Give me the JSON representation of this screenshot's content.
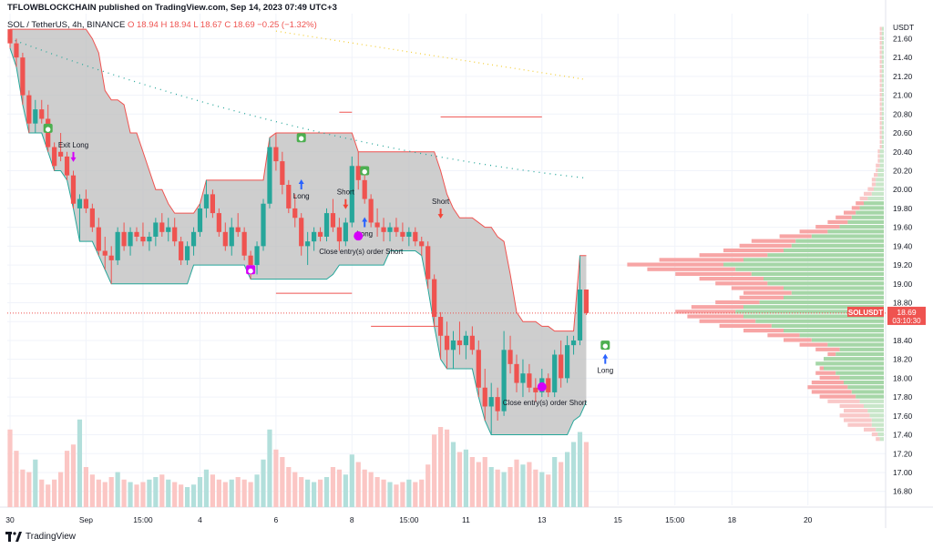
{
  "header": {
    "publish_line": "TFLOWBLOCKCHAIN published on TradingView.com, Sep 14, 2023 07:49 UTC+3",
    "pair": "SOL / TetherUS, 4h, BINANCE",
    "ohlc": "O 18.94 H 18.94 L 18.67 C 18.69 −0.25 (−1.32%)"
  },
  "footer": {
    "brand": "TradingView",
    "logo_icon": "tradingview-logo-icon"
  },
  "colors": {
    "up": "#26a69a",
    "down": "#ef5350",
    "upVol": "#b2dfdb",
    "downVol": "#fbc6c4",
    "band": "#bdbdbd",
    "vpUp": "#a5d6a7",
    "vpDown": "#f7a5a5",
    "vpUpVA": "#c8e6c9",
    "vpDownVA": "#f9c8c8"
  },
  "chart_data": {
    "type": "candlestick",
    "symbol": "SOLUSDT",
    "currency": "USDT",
    "last_price": "18.69",
    "countdown": "03:10:30",
    "yticks": [
      "21.60",
      "21.40",
      "21.20",
      "21.00",
      "20.80",
      "20.60",
      "20.40",
      "20.20",
      "20.00",
      "19.80",
      "19.60",
      "19.40",
      "19.20",
      "19.00",
      "18.80",
      "18.60",
      "18.40",
      "18.20",
      "18.00",
      "17.80",
      "17.60",
      "17.40",
      "17.20",
      "17.00",
      "16.80"
    ],
    "ylim": [
      16.72,
      21.72
    ],
    "xticks": [
      {
        "i": 0,
        "label": "30"
      },
      {
        "i": 12,
        "label": "Sep"
      },
      {
        "i": 21,
        "label": "15:00"
      },
      {
        "i": 30,
        "label": "4"
      },
      {
        "i": 42,
        "label": "6"
      },
      {
        "i": 54,
        "label": "8"
      },
      {
        "i": 63,
        "label": "15:00"
      },
      {
        "i": 72,
        "label": "11"
      },
      {
        "i": 84,
        "label": "13"
      },
      {
        "i": 96,
        "label": "15"
      },
      {
        "i": 105,
        "label": "15:00"
      },
      {
        "i": 114,
        "label": "18"
      },
      {
        "i": 126,
        "label": "20"
      }
    ],
    "candles": [
      [
        21.7,
        21.7,
        21.5,
        21.55
      ],
      [
        21.55,
        21.6,
        21.3,
        21.4
      ],
      [
        21.4,
        21.45,
        20.9,
        21.0
      ],
      [
        21.0,
        21.05,
        20.6,
        20.7
      ],
      [
        20.7,
        20.95,
        20.6,
        20.85
      ],
      [
        20.85,
        20.95,
        20.7,
        20.75
      ],
      [
        20.75,
        20.9,
        20.4,
        20.45
      ],
      [
        20.45,
        20.5,
        20.2,
        20.25
      ],
      [
        20.4,
        20.6,
        20.3,
        20.35
      ],
      [
        20.35,
        20.4,
        20.1,
        20.15
      ],
      [
        20.15,
        20.2,
        19.8,
        19.85
      ],
      [
        19.8,
        19.95,
        19.45,
        19.9
      ],
      [
        19.9,
        20.0,
        19.75,
        19.8
      ],
      [
        19.8,
        19.85,
        19.55,
        19.6
      ],
      [
        19.6,
        19.7,
        19.3,
        19.35
      ],
      [
        19.35,
        19.5,
        19.15,
        19.3
      ],
      [
        19.3,
        19.4,
        19.0,
        19.25
      ],
      [
        19.25,
        19.6,
        19.2,
        19.55
      ],
      [
        19.55,
        19.65,
        19.35,
        19.4
      ],
      [
        19.4,
        19.6,
        19.3,
        19.55
      ],
      [
        19.55,
        19.6,
        19.45,
        19.5
      ],
      [
        19.5,
        19.65,
        19.4,
        19.45
      ],
      [
        19.45,
        19.55,
        19.35,
        19.5
      ],
      [
        19.5,
        19.7,
        19.4,
        19.65
      ],
      [
        19.65,
        19.75,
        19.5,
        19.55
      ],
      [
        19.55,
        19.7,
        19.45,
        19.6
      ],
      [
        19.6,
        19.7,
        19.4,
        19.45
      ],
      [
        19.45,
        19.5,
        19.2,
        19.25
      ],
      [
        19.25,
        19.45,
        19.2,
        19.4
      ],
      [
        19.4,
        19.6,
        19.3,
        19.55
      ],
      [
        19.55,
        19.85,
        19.5,
        19.8
      ],
      [
        19.8,
        20.1,
        19.7,
        19.95
      ],
      [
        19.95,
        20.0,
        19.7,
        19.75
      ],
      [
        19.75,
        19.8,
        19.5,
        19.55
      ],
      [
        19.55,
        19.65,
        19.35,
        19.4
      ],
      [
        19.4,
        19.7,
        19.3,
        19.6
      ],
      [
        19.6,
        19.75,
        19.5,
        19.55
      ],
      [
        19.55,
        19.6,
        19.25,
        19.3
      ],
      [
        19.3,
        19.35,
        19.05,
        19.2
      ],
      [
        19.2,
        19.45,
        19.1,
        19.4
      ],
      [
        19.4,
        19.9,
        19.35,
        19.85
      ],
      [
        19.85,
        20.55,
        19.8,
        20.45
      ],
      [
        20.45,
        20.6,
        20.2,
        20.3
      ],
      [
        20.3,
        20.4,
        19.95,
        20.05
      ],
      [
        20.05,
        20.1,
        19.75,
        19.8
      ],
      [
        19.8,
        19.95,
        19.6,
        19.7
      ],
      [
        19.7,
        19.75,
        19.3,
        19.4
      ],
      [
        19.4,
        19.55,
        19.2,
        19.45
      ],
      [
        19.45,
        19.6,
        19.35,
        19.55
      ],
      [
        19.55,
        19.6,
        19.45,
        19.5
      ],
      [
        19.5,
        19.8,
        19.45,
        19.75
      ],
      [
        19.75,
        19.9,
        19.55,
        19.6
      ],
      [
        19.6,
        19.7,
        19.35,
        19.45
      ],
      [
        19.45,
        19.7,
        19.4,
        19.65
      ],
      [
        19.65,
        20.35,
        19.6,
        20.25
      ],
      [
        20.25,
        20.4,
        20.0,
        20.1
      ],
      [
        20.1,
        20.2,
        19.85,
        19.9
      ],
      [
        19.9,
        19.95,
        19.6,
        19.65
      ],
      [
        19.65,
        19.8,
        19.5,
        19.6
      ],
      [
        19.6,
        19.7,
        19.45,
        19.55
      ],
      [
        19.55,
        19.65,
        19.45,
        19.6
      ],
      [
        19.6,
        19.7,
        19.5,
        19.55
      ],
      [
        19.55,
        19.65,
        19.45,
        19.5
      ],
      [
        19.5,
        19.6,
        19.4,
        19.55
      ],
      [
        19.55,
        19.6,
        19.4,
        19.45
      ],
      [
        19.45,
        19.5,
        19.3,
        19.4
      ],
      [
        19.4,
        19.45,
        18.95,
        19.05
      ],
      [
        19.05,
        19.1,
        18.55,
        18.65
      ],
      [
        18.65,
        18.7,
        18.2,
        18.45
      ],
      [
        18.45,
        18.6,
        18.1,
        18.3
      ],
      [
        18.3,
        18.5,
        18.1,
        18.4
      ],
      [
        18.4,
        18.6,
        18.25,
        18.35
      ],
      [
        18.35,
        18.5,
        18.2,
        18.45
      ],
      [
        18.45,
        18.55,
        18.25,
        18.3
      ],
      [
        18.3,
        18.4,
        17.8,
        17.9
      ],
      [
        17.9,
        18.1,
        17.55,
        17.7
      ],
      [
        17.7,
        17.95,
        17.4,
        17.8
      ],
      [
        17.8,
        17.9,
        17.55,
        17.65
      ],
      [
        17.65,
        18.5,
        17.6,
        18.3
      ],
      [
        18.3,
        18.45,
        18.05,
        18.15
      ],
      [
        18.15,
        18.25,
        17.85,
        17.95
      ],
      [
        17.95,
        18.2,
        17.8,
        18.05
      ],
      [
        18.05,
        18.15,
        17.85,
        17.9
      ],
      [
        17.9,
        18.0,
        17.75,
        17.85
      ],
      [
        17.85,
        18.1,
        17.8,
        18.0
      ],
      [
        18.0,
        18.05,
        17.8,
        17.85
      ],
      [
        17.85,
        18.3,
        17.8,
        18.25
      ],
      [
        18.25,
        18.4,
        17.9,
        18.0
      ],
      [
        18.0,
        18.45,
        17.95,
        18.35
      ],
      [
        18.35,
        18.45,
        18.25,
        18.4
      ],
      [
        18.4,
        19.3,
        18.35,
        18.94
      ],
      [
        18.94,
        18.94,
        18.67,
        18.69
      ]
    ],
    "volume": [
      62,
      45,
      30,
      28,
      38,
      22,
      18,
      22,
      28,
      45,
      50,
      70,
      32,
      26,
      22,
      20,
      24,
      28,
      22,
      20,
      18,
      20,
      22,
      24,
      26,
      22,
      20,
      18,
      16,
      18,
      24,
      30,
      26,
      22,
      20,
      22,
      24,
      22,
      20,
      26,
      38,
      62,
      46,
      40,
      32,
      28,
      24,
      22,
      20,
      22,
      24,
      32,
      30,
      26,
      42,
      36,
      30,
      28,
      24,
      22,
      20,
      18,
      20,
      22,
      20,
      22,
      34,
      58,
      64,
      62,
      52,
      44,
      46,
      40,
      36,
      40,
      32,
      30,
      28,
      32,
      38,
      34,
      36,
      30,
      28,
      26,
      40,
      36,
      44,
      52,
      60,
      52
    ],
    "vol_max": 80,
    "markers": [
      {
        "i": 6,
        "price": 20.65,
        "glyph": "●",
        "color": "#4caf50",
        "type": "badge"
      },
      {
        "i": 10,
        "price": 20.35,
        "text": "Exit Long",
        "color": "#d500f9",
        "type": "down",
        "price2": 20.45
      },
      {
        "i": 38,
        "price": 19.15,
        "glyph": "●",
        "color": "#d500f9",
        "type": "badge"
      },
      {
        "i": 46,
        "price": 20.55,
        "glyph": "●",
        "color": "#4caf50",
        "type": "badge"
      },
      {
        "i": 46,
        "price": 20.05,
        "text": "Long",
        "color": "#2962ff",
        "type": "up"
      },
      {
        "i": 53,
        "price": 19.85,
        "text": "Short",
        "color": "#f44336",
        "type": "down"
      },
      {
        "i": 56,
        "price": 20.2,
        "glyph": "●",
        "color": "#4caf50",
        "type": "badge"
      },
      {
        "i": 56,
        "price": 19.65,
        "text": "Long",
        "color": "#2962ff",
        "type": "up"
      },
      {
        "i": 55,
        "price": 19.45,
        "text": "Close entry(s) order Short",
        "color": "#d500f9",
        "type": "exit"
      },
      {
        "i": 68,
        "price": 19.75,
        "text": "Short",
        "color": "#f44336",
        "type": "down"
      },
      {
        "i": 84,
        "price": 17.85,
        "text": "Close entry(s) order Short",
        "color": "#d500f9",
        "type": "exit"
      },
      {
        "i": 94,
        "price": 18.35,
        "glyph": "●",
        "color": "#4caf50",
        "type": "badge"
      },
      {
        "i": 94,
        "price": 18.2,
        "text": "Long",
        "color": "#2962ff",
        "type": "up"
      }
    ],
    "hlines": [
      {
        "i0": 52,
        "i1": 54,
        "price": 20.82
      },
      {
        "i0": 68,
        "i1": 84,
        "price": 20.77
      },
      {
        "i0": 42,
        "i1": 54,
        "price": 18.9
      },
      {
        "i0": 57,
        "i1": 68,
        "price": 18.55
      }
    ],
    "vp": {
      "price_from": 17.35,
      "step": 0.05,
      "rows": [
        [
          2,
          4
        ],
        [
          3,
          6
        ],
        [
          4,
          10
        ],
        [
          6,
          18
        ],
        [
          6,
          20
        ],
        [
          7,
          22
        ],
        [
          8,
          20
        ],
        [
          10,
          22
        ],
        [
          12,
          28
        ],
        [
          14,
          32
        ],
        [
          16,
          36
        ],
        [
          18,
          38
        ],
        [
          20,
          36
        ],
        [
          22,
          32
        ],
        [
          24,
          34
        ],
        [
          30,
          32
        ],
        [
          34,
          30
        ],
        [
          30,
          26
        ],
        [
          24,
          28
        ],
        [
          22,
          34
        ],
        [
          28,
          42
        ],
        [
          36,
          50
        ],
        [
          42,
          58
        ],
        [
          50,
          70
        ],
        [
          56,
          82
        ],
        [
          64,
          92
        ],
        [
          70,
          98
        ],
        [
          74,
          104
        ],
        [
          70,
          96
        ],
        [
          62,
          84
        ],
        [
          50,
          72
        ],
        [
          46,
          70
        ],
        [
          50,
          76
        ],
        [
          58,
          84
        ],
        [
          60,
          92
        ],
        [
          66,
          104
        ],
        [
          74,
          118
        ],
        [
          80,
          128
        ],
        [
          70,
          112
        ],
        [
          58,
          92
        ],
        [
          50,
          80
        ],
        [
          46,
          72
        ],
        [
          44,
          66
        ],
        [
          36,
          52
        ],
        [
          28,
          42
        ],
        [
          22,
          34
        ],
        [
          18,
          28
        ],
        [
          16,
          24
        ],
        [
          14,
          20
        ],
        [
          12,
          16
        ],
        [
          10,
          14
        ],
        [
          8,
          12
        ],
        [
          6,
          10
        ],
        [
          5,
          8
        ],
        [
          4,
          6
        ],
        [
          4,
          6
        ],
        [
          3,
          5
        ],
        [
          3,
          4
        ],
        [
          2,
          4
        ],
        [
          2,
          3
        ],
        [
          2,
          3
        ],
        [
          2,
          3
        ],
        [
          1,
          2
        ],
        [
          1,
          2
        ],
        [
          1,
          2
        ],
        [
          1,
          2
        ],
        [
          1,
          2
        ],
        [
          1,
          2
        ],
        [
          1,
          2
        ],
        [
          1,
          2
        ],
        [
          1,
          2
        ],
        [
          1,
          2
        ],
        [
          1,
          2
        ],
        [
          1,
          2
        ],
        [
          1,
          2
        ],
        [
          1,
          2
        ],
        [
          1,
          2
        ],
        [
          1,
          2
        ],
        [
          1,
          2
        ],
        [
          1,
          2
        ],
        [
          1,
          2
        ],
        [
          1,
          2
        ],
        [
          1,
          2
        ],
        [
          1,
          2
        ],
        [
          1,
          2
        ],
        [
          1,
          2
        ],
        [
          1,
          2
        ],
        [
          1,
          2
        ],
        [
          1,
          2
        ],
        [
          1,
          2
        ],
        [
          1,
          2
        ],
        [
          1,
          2
        ],
        [
          1,
          2
        ],
        [
          1,
          2
        ],
        [
          1,
          2
        ],
        [
          1,
          2
        ]
      ]
    }
  }
}
